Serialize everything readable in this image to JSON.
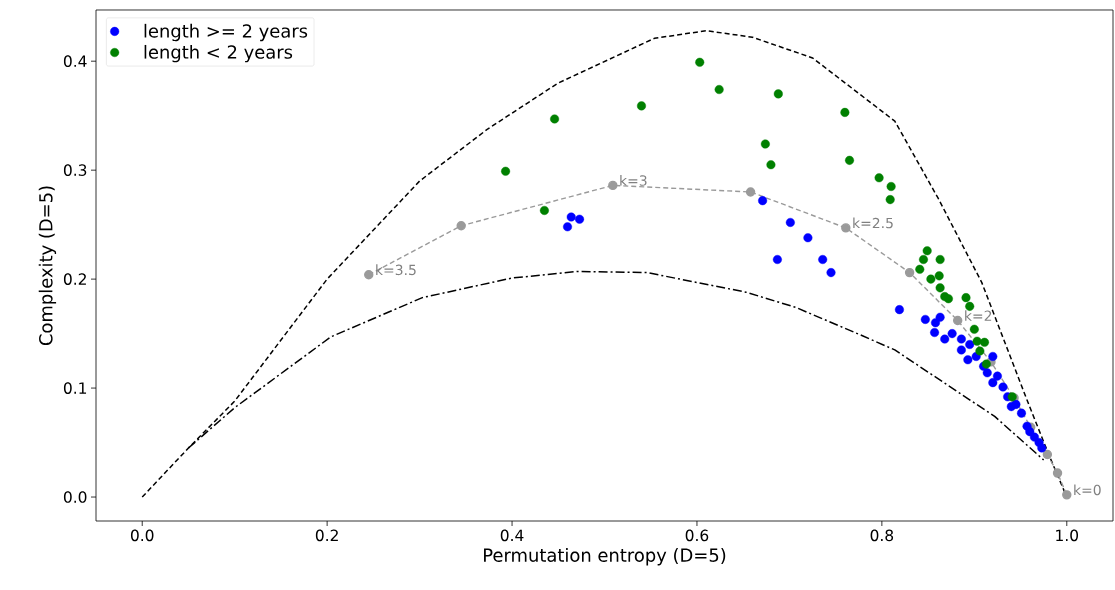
{
  "chart_data": {
    "type": "scatter",
    "xlabel": "Permutation entropy (D=5)",
    "ylabel": "Complexity (D=5)",
    "xlim": [
      -0.05,
      1.05
    ],
    "ylim": [
      -0.022,
      0.447
    ],
    "xticks": [
      {
        "value": 0,
        "label": "0.0"
      },
      0.2,
      0.4,
      0.6,
      0.8,
      {
        "value": 1,
        "label": "1.0"
      }
    ],
    "yticks": [
      {
        "value": 0,
        "label": "0.0"
      },
      0.1,
      0.2,
      0.3,
      0.4
    ],
    "legend": "top left",
    "series": [
      {
        "type": "line",
        "color": "#000000",
        "line_style": "dashed",
        "marker": "none",
        "x": [
          0,
          0.05,
          0.1,
          0.2,
          0.3,
          0.374,
          0.45,
          0.554,
          0.61,
          0.66,
          0.725,
          0.814,
          0.861,
          0.908,
          0.957,
          0.98,
          1.0
        ],
        "values": [
          0,
          0.045,
          0.088,
          0.2,
          0.29,
          0.338,
          0.38,
          0.421,
          0.428,
          0.422,
          0.403,
          0.345,
          0.274,
          0.197,
          0.089,
          0.04,
          0
        ]
      },
      {
        "type": "line",
        "color": "#000000",
        "line_style": "dashdot",
        "marker": "none",
        "x": [
          0.05,
          0.1,
          0.204,
          0.303,
          0.4,
          0.47,
          0.546,
          0.653,
          0.707,
          0.779,
          0.814,
          0.922,
          0.975
        ],
        "values": [
          0.045,
          0.082,
          0.147,
          0.183,
          0.201,
          0.207,
          0.206,
          0.188,
          0.174,
          0.148,
          0.135,
          0.074,
          0.034
        ]
      },
      {
        "type": "line",
        "color": "#9a9a9a",
        "line_style": "dashed",
        "marker": "circle",
        "x": [
          0.245,
          0.345,
          0.509,
          0.658,
          0.761,
          0.83,
          0.882,
          0.918,
          0.943,
          0.961,
          0.979,
          0.99,
          1.0
        ],
        "values": [
          0.204,
          0.249,
          0.286,
          0.28,
          0.247,
          0.206,
          0.162,
          0.124,
          0.091,
          0.064,
          0.039,
          0.022,
          0.002
        ]
      },
      {
        "type": "scatter",
        "name": "length >= 2 years",
        "marker": "circle",
        "color": "#0000ff",
        "x": [
          0.46,
          0.464,
          0.473,
          0.671,
          0.701,
          0.72,
          0.687,
          0.736,
          0.745,
          0.819,
          0.847,
          0.863,
          0.857,
          0.868,
          0.886,
          0.886,
          0.893,
          0.902,
          0.92,
          0.914,
          0.925,
          0.931,
          0.936,
          0.94,
          0.951,
          0.957,
          0.965,
          0.973,
          0.858,
          0.876,
          0.895,
          0.91,
          0.92,
          0.945,
          0.96,
          0.97
        ],
        "values": [
          0.248,
          0.257,
          0.255,
          0.272,
          0.252,
          0.238,
          0.218,
          0.218,
          0.206,
          0.172,
          0.163,
          0.165,
          0.151,
          0.145,
          0.145,
          0.135,
          0.126,
          0.129,
          0.129,
          0.114,
          0.111,
          0.101,
          0.092,
          0.083,
          0.077,
          0.065,
          0.055,
          0.045,
          0.16,
          0.15,
          0.14,
          0.12,
          0.105,
          0.085,
          0.06,
          0.05
        ]
      },
      {
        "type": "scatter",
        "name": "length < 2 years",
        "marker": "circle",
        "color": "#008000",
        "x": [
          0.603,
          0.624,
          0.54,
          0.446,
          0.393,
          0.435,
          0.688,
          0.76,
          0.674,
          0.68,
          0.765,
          0.797,
          0.81,
          0.809,
          0.849,
          0.845,
          0.863,
          0.841,
          0.853,
          0.862,
          0.863,
          0.868,
          0.872,
          0.891,
          0.895,
          0.9,
          0.903,
          0.911,
          0.906,
          0.913,
          0.941
        ],
        "values": [
          0.399,
          0.374,
          0.359,
          0.347,
          0.299,
          0.263,
          0.37,
          0.353,
          0.324,
          0.305,
          0.309,
          0.293,
          0.285,
          0.273,
          0.226,
          0.218,
          0.218,
          0.209,
          0.2,
          0.203,
          0.192,
          0.184,
          0.182,
          0.183,
          0.175,
          0.154,
          0.143,
          0.142,
          0.134,
          0.122,
          0.092
        ]
      }
    ],
    "annotations": [
      {
        "text": "k=3.5",
        "x": 0.245,
        "y": 0.204
      },
      {
        "text": "k=3",
        "x": 0.509,
        "y": 0.286
      },
      {
        "text": "k=2.5",
        "x": 0.761,
        "y": 0.247
      },
      {
        "text": "k=2",
        "x": 0.882,
        "y": 0.162
      },
      {
        "text": "k=0",
        "x": 1.0,
        "y": 0.002
      }
    ]
  }
}
